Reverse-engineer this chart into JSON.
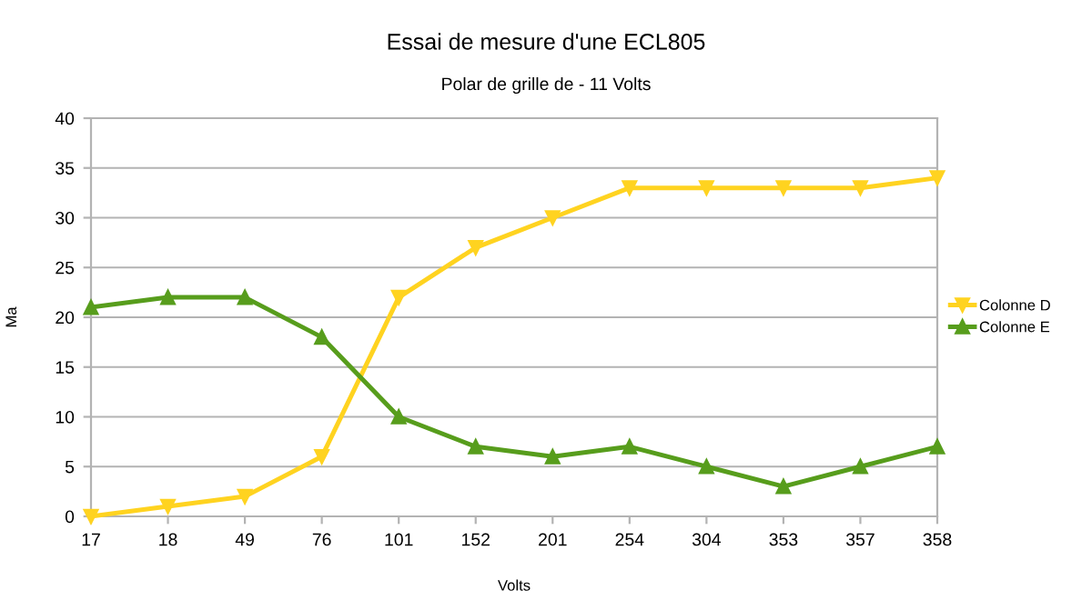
{
  "chart_data": {
    "type": "line",
    "title": "Essai de mesure d'une ECL805",
    "subtitle": "Polar de grille de - 11 Volts",
    "xlabel": "Volts",
    "ylabel": "Ma",
    "categories": [
      "17",
      "18",
      "49",
      "76",
      "101",
      "152",
      "201",
      "254",
      "304",
      "353",
      "357",
      "358"
    ],
    "series": [
      {
        "name": "Colonne D",
        "color": "#ffd320",
        "marker": "triangle_down",
        "values": [
          0,
          1,
          2,
          6,
          22,
          27,
          30,
          33,
          33,
          33,
          33,
          34
        ]
      },
      {
        "name": "Colonne E",
        "color": "#579d1c",
        "marker": "triangle",
        "values": [
          21,
          22,
          22,
          18,
          10,
          7,
          6,
          7,
          5,
          3,
          5,
          7
        ]
      }
    ],
    "ylim": [
      0,
      40
    ],
    "yticks": [
      0,
      5,
      10,
      15,
      20,
      25,
      30,
      35,
      40
    ],
    "grid": "y",
    "legend": "right",
    "line_style": "solid"
  }
}
